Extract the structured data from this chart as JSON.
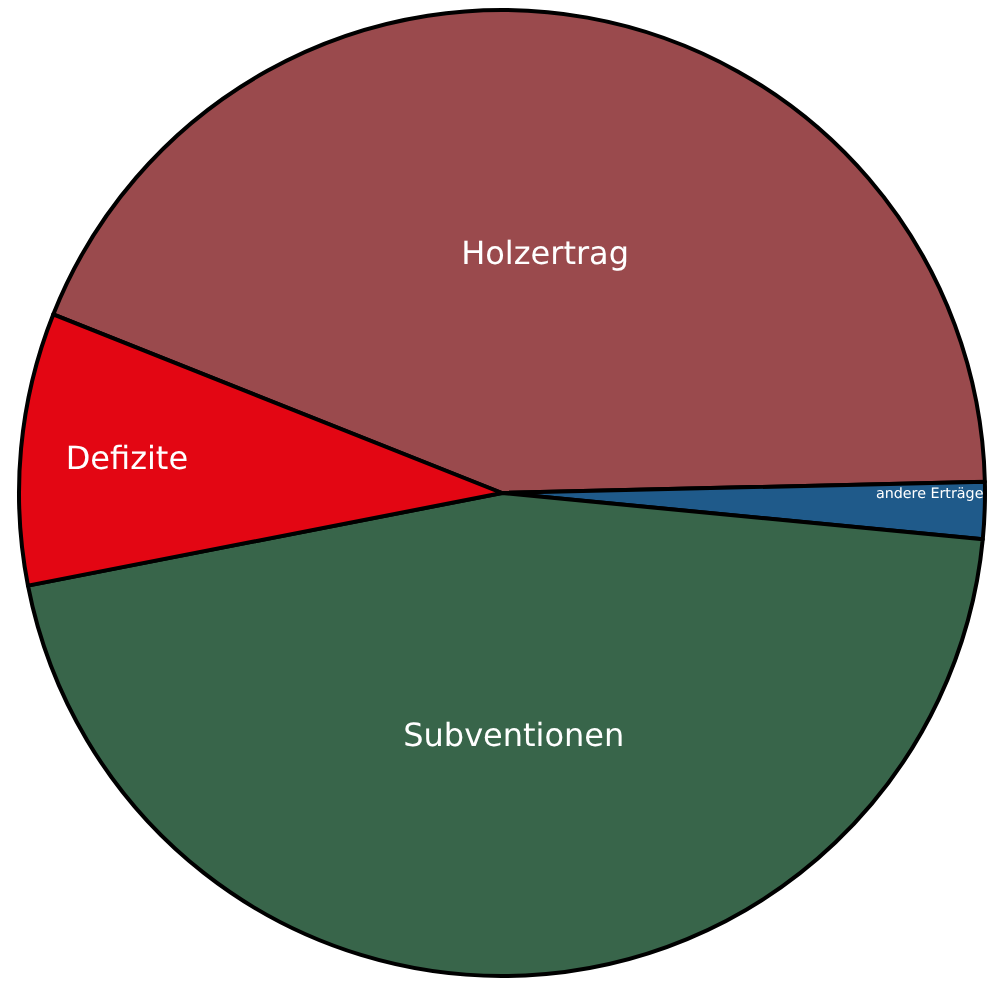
{
  "chart_data": {
    "type": "pie",
    "categories": [
      "Holzertrag",
      "andere Erträge",
      "Subventionen",
      "Defizite"
    ],
    "values": [
      43.6,
      1.9,
      45.4,
      9.1
    ],
    "colors": [
      "#9a4a4d",
      "#1f5a8a",
      "#38654a",
      "#e30613"
    ],
    "legend": false
  }
}
